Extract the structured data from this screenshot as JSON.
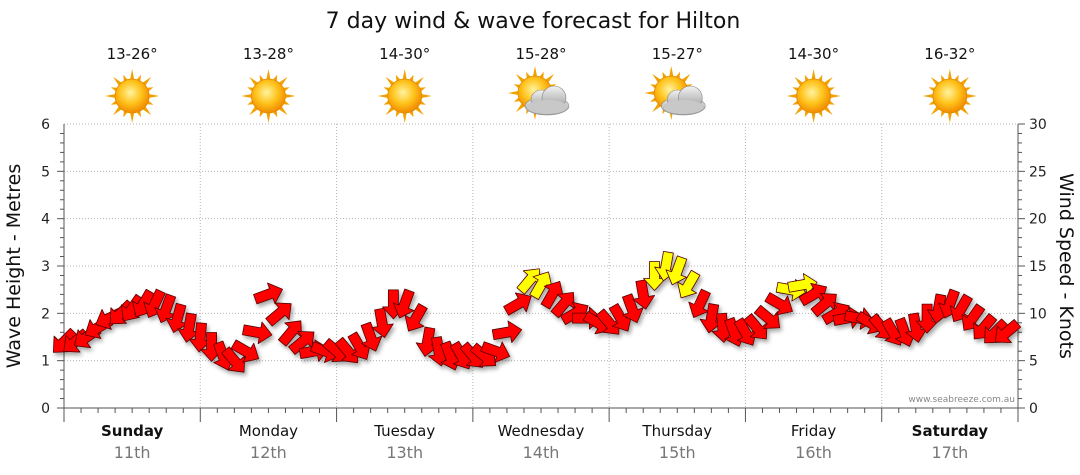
{
  "chart_data": {
    "type": "arrow-series",
    "title": "7 day wind & wave forecast for Hilton",
    "y_left": {
      "label": "Wave Height - Metres",
      "range": [
        0,
        6
      ],
      "ticks": [
        "0",
        "1",
        "2",
        "3",
        "4",
        "5",
        "6"
      ]
    },
    "y_right": {
      "label": "Wind Speed - Knots",
      "range": [
        0,
        30
      ],
      "ticks": [
        "0",
        "5",
        "10",
        "15",
        "20",
        "25",
        "30"
      ]
    },
    "days": [
      {
        "name": "Sunday",
        "date": "11th",
        "temp": "13-26°",
        "icon": "sun-icon",
        "bold": true
      },
      {
        "name": "Monday",
        "date": "12th",
        "temp": "13-28°",
        "icon": "sun-icon",
        "bold": false
      },
      {
        "name": "Tuesday",
        "date": "13th",
        "temp": "14-30°",
        "icon": "sun-icon",
        "bold": false
      },
      {
        "name": "Wednesday",
        "date": "14th",
        "temp": "15-28°",
        "icon": "partly-cloudy-icon",
        "bold": false
      },
      {
        "name": "Thursday",
        "date": "15th",
        "temp": "15-27°",
        "icon": "partly-cloudy-icon",
        "bold": false
      },
      {
        "name": "Friday",
        "date": "16th",
        "temp": "14-30°",
        "icon": "sun-icon",
        "bold": false
      },
      {
        "name": "Saturday",
        "date": "17th",
        "temp": "16-32°",
        "icon": "sun-icon",
        "bold": true
      }
    ],
    "wind_series": {
      "x_days": [
        0.0,
        0.083,
        0.167,
        0.25,
        0.333,
        0.417,
        0.5,
        0.583,
        0.667,
        0.75,
        0.833,
        0.917,
        1.0,
        1.083,
        1.167,
        1.25,
        1.333,
        1.417,
        1.5,
        1.583,
        1.667,
        1.75,
        1.833,
        1.917,
        2.0,
        2.083,
        2.167,
        2.25,
        2.333,
        2.417,
        2.5,
        2.583,
        2.667,
        2.75,
        2.833,
        2.917,
        3.0,
        3.083,
        3.167,
        3.25,
        3.333,
        3.417,
        3.5,
        3.583,
        3.667,
        3.75,
        3.833,
        3.917,
        4.0,
        4.083,
        4.167,
        4.25,
        4.333,
        4.417,
        4.5,
        4.583,
        4.667,
        4.75,
        4.833,
        4.917,
        5.0,
        5.083,
        5.167,
        5.25,
        5.333,
        5.417,
        5.5,
        5.583,
        5.667,
        5.75,
        5.833,
        5.917,
        6.0,
        6.083,
        6.167,
        6.25,
        6.333,
        6.417,
        6.5,
        6.583,
        6.667,
        6.75,
        6.833,
        6.917
      ],
      "knots": [
        7,
        7,
        7.5,
        8.5,
        9.5,
        10,
        10.5,
        11,
        11,
        10.5,
        9.5,
        8.5,
        7.5,
        6.5,
        5.5,
        5,
        6,
        8,
        12,
        10,
        8,
        7,
        6,
        6,
        6,
        6,
        6.5,
        7.5,
        9,
        11,
        11,
        9.5,
        7,
        6,
        5.5,
        5.5,
        5.5,
        5.5,
        6,
        8,
        11,
        13.5,
        13,
        12,
        11,
        10,
        9.5,
        9,
        9,
        9.5,
        10.5,
        12,
        14,
        15,
        14.5,
        13,
        11,
        9.5,
        8.5,
        8,
        8,
        8.5,
        9.5,
        11,
        12.5,
        13,
        12,
        11,
        10,
        9.5,
        9.5,
        9,
        8.5,
        8,
        8,
        8.5,
        9.5,
        10.5,
        11,
        10.5,
        9.5,
        8.5,
        8,
        8
      ],
      "bearing_deg": [
        225,
        230,
        235,
        240,
        245,
        225,
        215,
        210,
        205,
        200,
        195,
        190,
        185,
        180,
        160,
        140,
        120,
        100,
        70,
        50,
        40,
        50,
        80,
        110,
        130,
        140,
        150,
        160,
        170,
        180,
        200,
        210,
        190,
        170,
        160,
        150,
        140,
        130,
        110,
        80,
        60,
        40,
        30,
        30,
        40,
        60,
        90,
        120,
        140,
        150,
        160,
        170,
        180,
        190,
        200,
        210,
        205,
        190,
        175,
        160,
        150,
        140,
        130,
        120,
        100,
        80,
        60,
        50,
        60,
        80,
        100,
        120,
        140,
        150,
        160,
        170,
        180,
        190,
        200,
        210,
        215,
        220,
        225,
        230
      ],
      "strong_threshold_knots": 12.5,
      "colors": {
        "moderate": "#ff0000",
        "strong": "#ffff00",
        "outline": "#550000"
      }
    }
  },
  "credit": "www.seabreeze.com.au"
}
